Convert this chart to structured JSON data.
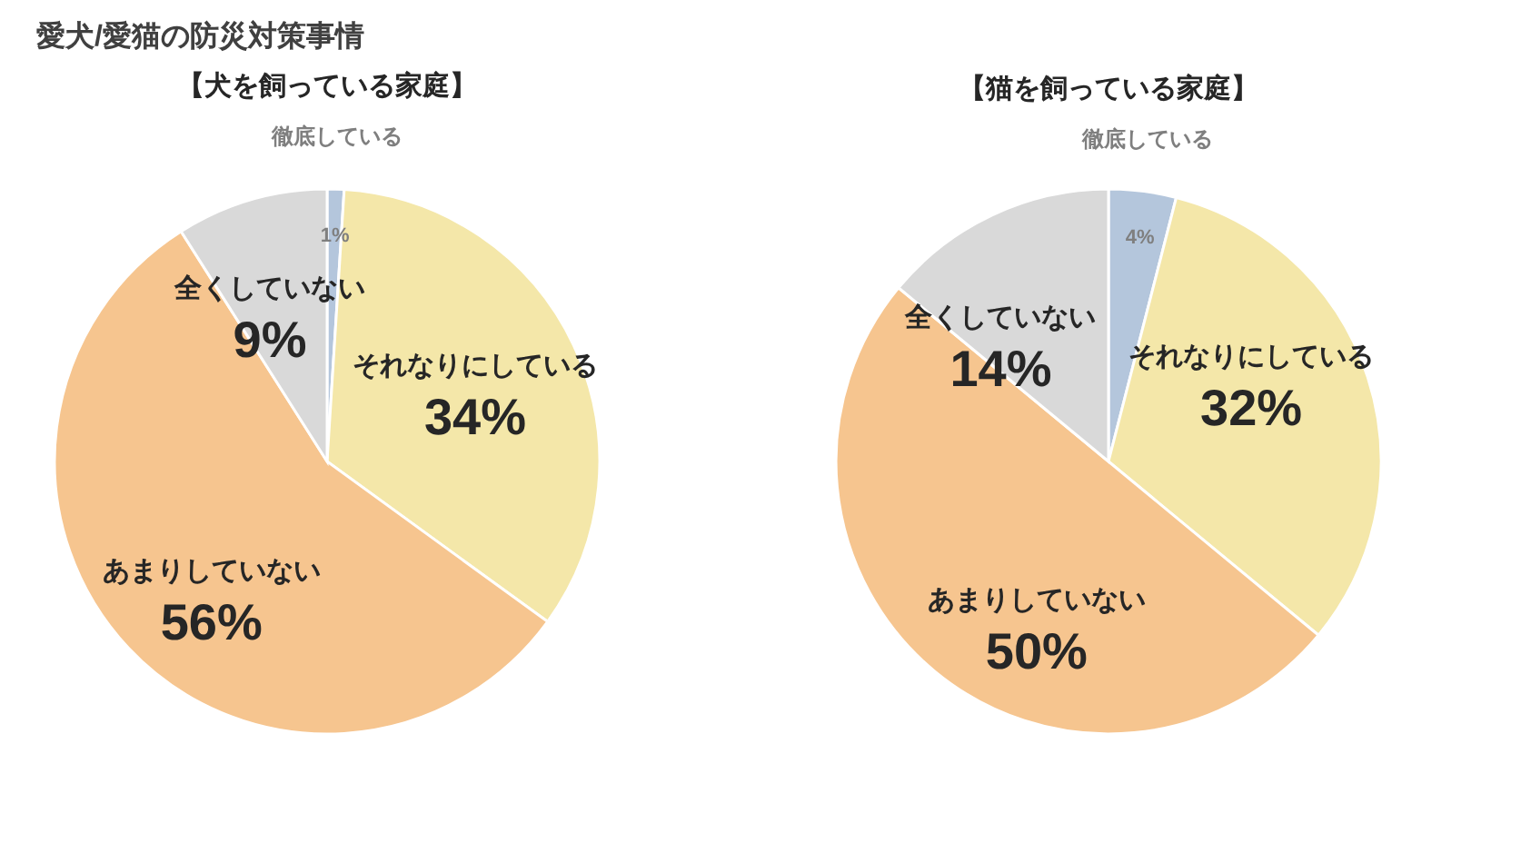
{
  "chart_data": [
    {
      "type": "pie",
      "title": "愛犬/愛猫の防災対策事情",
      "subtitle": "【犬を飼っている家庭】",
      "categories": [
        "徹底している",
        "それなりにしている",
        "あまりしていない",
        "全くしていない"
      ],
      "values": [
        1,
        34,
        56,
        9
      ],
      "value_labels": [
        "1%",
        "34%",
        "56%",
        "9%"
      ],
      "colors": [
        "#b4c6dc",
        "#f4e7a9",
        "#f6c58f",
        "#d9d9d9"
      ]
    },
    {
      "type": "pie",
      "subtitle": "【猫を飼っている家庭】",
      "categories": [
        "徹底している",
        "それなりにしている",
        "あまりしていない",
        "全くしていない"
      ],
      "values": [
        4,
        32,
        50,
        14
      ],
      "value_labels": [
        "4%",
        "32%",
        "50%",
        "14%"
      ],
      "colors": [
        "#b4c6dc",
        "#f4e7a9",
        "#f6c58f",
        "#d9d9d9"
      ]
    }
  ]
}
